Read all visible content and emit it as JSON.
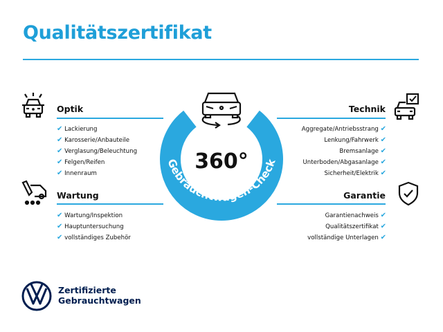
{
  "title": "Qualitätszertifikat",
  "colors": {
    "accent": "#2aa8df",
    "brand": "#001e50"
  },
  "badge": {
    "value": "360°",
    "ring_text": "Gebrauchtwagen-Check",
    "icon": "car-rotate-icon"
  },
  "sections": {
    "optik": {
      "title": "Optik",
      "icon": "car-lights-icon",
      "items": [
        "Lackierung",
        "Karosserie/Anbauteile",
        "Verglasung/Beleuchtung",
        "Felgen/Reifen",
        "Innenraum"
      ]
    },
    "wartung": {
      "title": "Wartung",
      "icon": "service-van-icon",
      "items": [
        "Wartung/Inspektion",
        "Hauptuntersuchung",
        "vollständiges Zubehör"
      ]
    },
    "technik": {
      "title": "Technik",
      "icon": "car-check-icon",
      "items": [
        "Aggregate/Antriebsstrang",
        "Lenkung/Fahrwerk",
        "Bremsanlage",
        "Unterboden/Abgasanlage",
        "Sicherheit/Elektrik"
      ]
    },
    "garantie": {
      "title": "Garantie",
      "icon": "shield-check-icon",
      "items": [
        "Garantienachweis",
        "Qualitätszertifikat",
        "vollständige Unterlagen"
      ]
    }
  },
  "check_mark": "✔",
  "brand": {
    "line1": "Zertifizierte",
    "line2": "Gebrauchtwagen",
    "logo": "vw-logo"
  }
}
